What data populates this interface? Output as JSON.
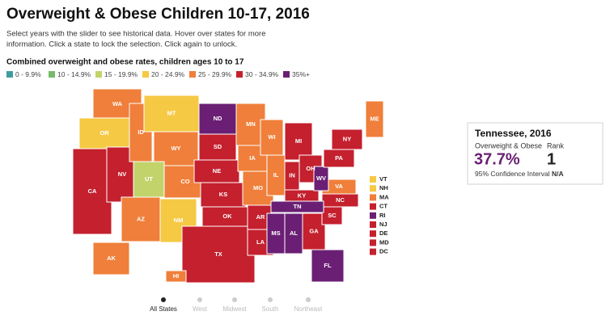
{
  "header": {
    "title": "Overweight & Obese Children 10-17, 2016",
    "description_lines": [
      "Select years with the slider to see historical data. Hover over states for more",
      "information. Click a state to lock the selection. Click again to unlock."
    ]
  },
  "legend": {
    "title": "Combined overweight and obese rates, children ages 10 to 17",
    "items": [
      {
        "label": "0 - 9.9%",
        "color": "#3f9d9f"
      },
      {
        "label": "10 - 14.9%",
        "color": "#78bb6a"
      },
      {
        "label": "15 - 19.9%",
        "color": "#c3d36c"
      },
      {
        "label": "20 - 24.9%",
        "color": "#f6c944"
      },
      {
        "label": "25 - 29.9%",
        "color": "#ef7f3a"
      },
      {
        "label": "30 - 34.9%",
        "color": "#c4202e"
      },
      {
        "label": "35%+",
        "color": "#6a1f74"
      }
    ]
  },
  "map": {
    "states": [
      {
        "label": "WA",
        "color": "#ef7f3a"
      },
      {
        "label": "OR",
        "color": "#f6c944"
      },
      {
        "label": "CA",
        "color": "#c4202e"
      },
      {
        "label": "NV",
        "color": "#c4202e"
      },
      {
        "label": "ID",
        "color": "#ef7f3a"
      },
      {
        "label": "MT",
        "color": "#f6c944"
      },
      {
        "label": "WY",
        "color": "#ef7f3a"
      },
      {
        "label": "UT",
        "color": "#c3d36c"
      },
      {
        "label": "CO",
        "color": "#ef7f3a"
      },
      {
        "label": "AZ",
        "color": "#ef7f3a"
      },
      {
        "label": "NM",
        "color": "#f6c944"
      },
      {
        "label": "ND",
        "color": "#6a1f74"
      },
      {
        "label": "SD",
        "color": "#c4202e"
      },
      {
        "label": "NE",
        "color": "#c4202e"
      },
      {
        "label": "KS",
        "color": "#c4202e"
      },
      {
        "label": "OK",
        "color": "#c4202e"
      },
      {
        "label": "TX",
        "color": "#c4202e"
      },
      {
        "label": "MN",
        "color": "#ef7f3a"
      },
      {
        "label": "IA",
        "color": "#ef7f3a"
      },
      {
        "label": "MO",
        "color": "#ef7f3a"
      },
      {
        "label": "AR",
        "color": "#c4202e"
      },
      {
        "label": "LA",
        "color": "#c4202e"
      },
      {
        "label": "WI",
        "color": "#ef7f3a"
      },
      {
        "label": "IL",
        "color": "#ef7f3a"
      },
      {
        "label": "MI",
        "color": "#c4202e"
      },
      {
        "label": "IN",
        "color": "#c4202e"
      },
      {
        "label": "OH",
        "color": "#c4202e"
      },
      {
        "label": "KY",
        "color": "#c4202e"
      },
      {
        "label": "MS",
        "color": "#6a1f74"
      },
      {
        "label": "AL",
        "color": "#6a1f74"
      },
      {
        "label": "GA",
        "color": "#c4202e"
      },
      {
        "label": "FL",
        "color": "#6a1f74"
      },
      {
        "label": "SC",
        "color": "#c4202e"
      },
      {
        "label": "NC",
        "color": "#c4202e"
      },
      {
        "label": "VA",
        "color": "#ef7f3a"
      },
      {
        "label": "WV",
        "color": "#6a1f74"
      },
      {
        "label": "PA",
        "color": "#c4202e"
      },
      {
        "label": "NY",
        "color": "#c4202e"
      },
      {
        "label": "ME",
        "color": "#ef7f3a"
      },
      {
        "label": "AK",
        "color": "#ef7f3a"
      },
      {
        "label": "HI",
        "color": "#ef7f3a"
      },
      {
        "label": "TN",
        "color": "#6a1f74"
      }
    ],
    "small_states": [
      {
        "label": "VT",
        "color": "#f6c944"
      },
      {
        "label": "NH",
        "color": "#f6c944"
      },
      {
        "label": "MA",
        "color": "#ef7f3a"
      },
      {
        "label": "CT",
        "color": "#c4202e"
      },
      {
        "label": "RI",
        "color": "#6a1f74"
      },
      {
        "label": "NJ",
        "color": "#c4202e"
      },
      {
        "label": "DE",
        "color": "#c4202e"
      },
      {
        "label": "MD",
        "color": "#c4202e"
      },
      {
        "label": "DC",
        "color": "#c4202e"
      }
    ]
  },
  "tooltip": {
    "title": "Tennessee, 2016",
    "metric_label": "Overweight & Obese",
    "metric_value": "37.7%",
    "rank_label": "Rank",
    "rank_value": "1",
    "ci_label": "95% Confidence Interval",
    "ci_value": "N/A"
  },
  "slider": {
    "options": [
      "All States",
      "West",
      "Midwest",
      "South",
      "Northeast"
    ]
  }
}
